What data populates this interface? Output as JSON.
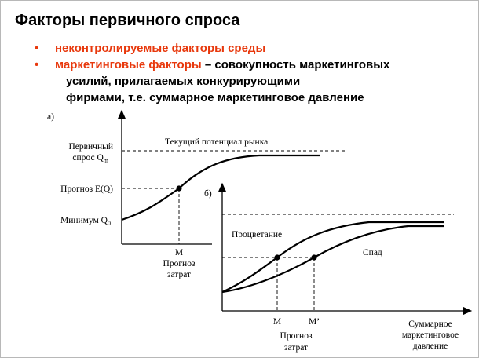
{
  "slide": {
    "title": "Факторы первичного спроса",
    "bullets": [
      {
        "marker": "•",
        "highlight": "неконтролируемые факторы среды",
        "rest": ""
      },
      {
        "marker": "•",
        "highlight": "маркетинговые факторы",
        "rest": " – совокупность маркетинговых"
      }
    ],
    "continuation_lines": [
      "усилий, прилагаемых конкурирующими",
      "фирмами, т.е. суммарное маркетинговое давление"
    ]
  },
  "diagram_a": {
    "tag": "а)",
    "y_labels": {
      "primary_demand_line1": "Первичный",
      "primary_demand_line2": "спрос Q",
      "primary_demand_sub": "m",
      "forecast": "Прогноз E(Q)",
      "minimum": "Минимум Q",
      "minimum_sub": "0"
    },
    "potential_label": "Текущий потенциал рынка",
    "x_labels": [
      "M",
      "Прогноз",
      "затрат"
    ]
  },
  "diagram_b": {
    "tag": "б)",
    "curve_labels": {
      "prosperity": "Процветание",
      "decline": "Спад"
    },
    "x_marks": {
      "m": "M",
      "m_prime": "M’"
    },
    "x_caption": [
      "Прогноз",
      "затрат"
    ],
    "axis_caption": [
      "Суммарное",
      "маркетинговое",
      "давление"
    ]
  },
  "colors": {
    "accent": "#e8380c",
    "text": "#000000",
    "frame": "#b8b8b8"
  }
}
